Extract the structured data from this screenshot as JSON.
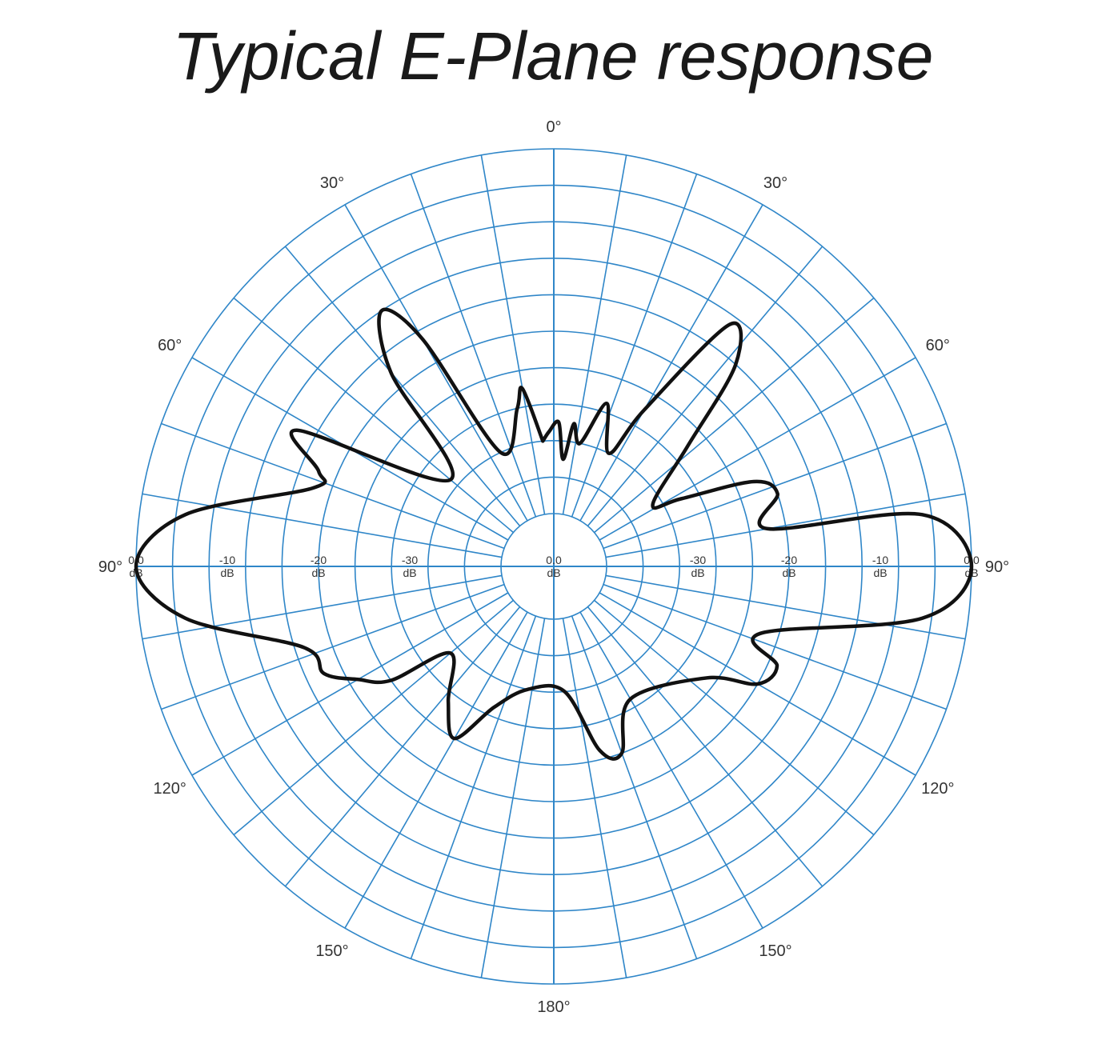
{
  "chart_data": {
    "type": "polar",
    "title": "Typical E-Plane response",
    "angle_labels": [
      {
        "text": "0°",
        "angle": 0
      },
      {
        "text": "30°",
        "angle": 30
      },
      {
        "text": "30°",
        "angle": -30
      },
      {
        "text": "60°",
        "angle": 60
      },
      {
        "text": "60°",
        "angle": -60
      },
      {
        "text": "90°",
        "angle": 90
      },
      {
        "text": "90°",
        "angle": -90
      },
      {
        "text": "120°",
        "angle": 120
      },
      {
        "text": "120°",
        "angle": -120
      },
      {
        "text": "150°",
        "angle": 150
      },
      {
        "text": "150°",
        "angle": -150
      },
      {
        "text": "180°",
        "angle": 180
      }
    ],
    "radial_axis": {
      "min_db": -40,
      "max_db": 0,
      "tick_values": [
        0,
        -10,
        -20,
        -30
      ],
      "tick_labels": [
        "0.0",
        "-10",
        "-20",
        "-30"
      ],
      "unit": "dB",
      "center_label": "0.0",
      "center_unit": "dB"
    },
    "grid": {
      "visible": true,
      "color": "#2f86c8",
      "ring_step_db": 4,
      "spoke_step_deg": 10
    },
    "series": [
      {
        "color": "#111111",
        "points": [
          {
            "angle": -5,
            "db": -32
          },
          {
            "angle": -10,
            "db": -26
          },
          {
            "angle": -13,
            "db": -28
          },
          {
            "angle": -25,
            "db": -32
          },
          {
            "angle": -30,
            "db": -17
          },
          {
            "angle": -34,
            "db": -12
          },
          {
            "angle": -40,
            "db": -18
          },
          {
            "angle": -50,
            "db": -31
          },
          {
            "angle": -62,
            "db": -14
          },
          {
            "angle": -68,
            "db": -18
          },
          {
            "angle": -72,
            "db": -18
          },
          {
            "angle": -82,
            "db": -5
          },
          {
            "angle": -90,
            "db": 0
          },
          {
            "angle": -98,
            "db": -5
          },
          {
            "angle": -108,
            "db": -17
          },
          {
            "angle": -115,
            "db": -18
          },
          {
            "angle": -120,
            "db": -21
          },
          {
            "angle": -125,
            "db": -24
          },
          {
            "angle": -130,
            "db": -31
          },
          {
            "angle": -142,
            "db": -27
          },
          {
            "angle": -150,
            "db": -24
          },
          {
            "angle": -157,
            "db": -29
          },
          {
            "angle": -168,
            "db": -32
          },
          {
            "angle": 175,
            "db": -32
          },
          {
            "angle": 166,
            "db": -25
          },
          {
            "angle": 160,
            "db": -24
          },
          {
            "angle": 150,
            "db": -29
          },
          {
            "angle": 126,
            "db": -25
          },
          {
            "angle": 120,
            "db": -20
          },
          {
            "angle": 114,
            "db": -19
          },
          {
            "angle": 108,
            "db": -22
          },
          {
            "angle": 98,
            "db": -5
          },
          {
            "angle": 90,
            "db": 0
          },
          {
            "angle": 82,
            "db": -5
          },
          {
            "angle": 80,
            "db": -22
          },
          {
            "angle": 72,
            "db": -20
          },
          {
            "angle": 67,
            "db": -22
          },
          {
            "angle": 62,
            "db": -30
          },
          {
            "angle": 58,
            "db": -33
          },
          {
            "angle": 48,
            "db": -26
          },
          {
            "angle": 42,
            "db": -16
          },
          {
            "angle": 36,
            "db": -13
          },
          {
            "angle": 30,
            "db": -26
          },
          {
            "angle": 26,
            "db": -32
          },
          {
            "angle": 18,
            "db": -27
          },
          {
            "angle": 12,
            "db": -32
          },
          {
            "angle": 8,
            "db": -30
          },
          {
            "angle": 5,
            "db": -34
          },
          {
            "angle": 2,
            "db": -30
          },
          {
            "angle": -2,
            "db": -31
          },
          {
            "angle": -5,
            "db": -32
          }
        ]
      }
    ]
  }
}
